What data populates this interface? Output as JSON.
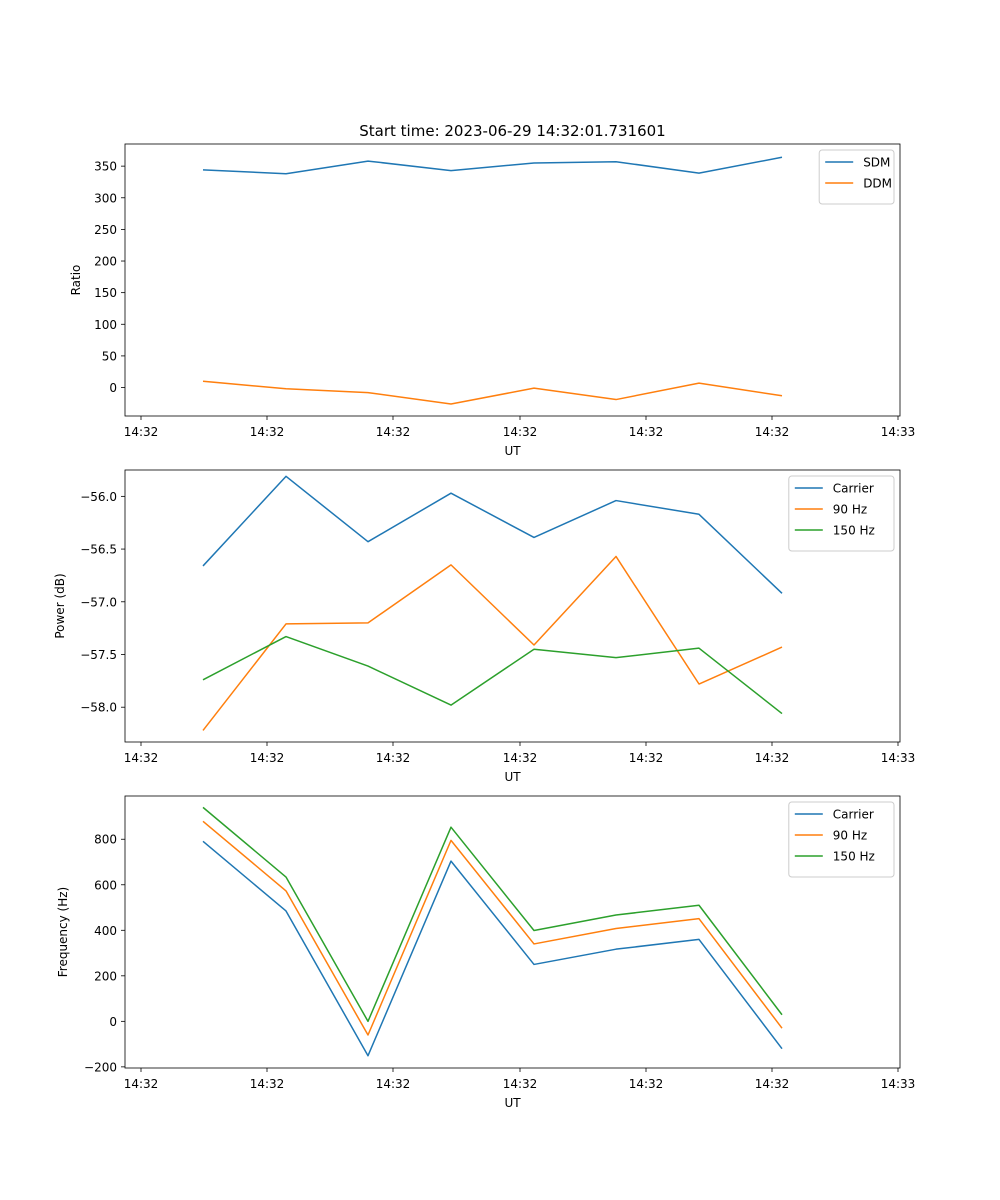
{
  "figure": {
    "title": "Start time: 2023-06-29 14:32:01.731601"
  },
  "chart_data": [
    {
      "type": "line",
      "title": "Start time: 2023-06-29 14:32:01.731601",
      "xlabel": "UT",
      "ylabel": "Ratio",
      "x_tick_labels": [
        "14:32",
        "14:32",
        "14:32",
        "14:32",
        "14:32",
        "14:32",
        "14:33"
      ],
      "y_ticks": [
        0,
        50,
        100,
        150,
        200,
        250,
        300,
        350
      ],
      "ylim": [
        -45,
        385
      ],
      "grid": false,
      "legend_position": "top-right",
      "series": [
        {
          "name": "SDM",
          "color": "#1f77b4",
          "values": [
            344,
            338,
            358,
            343,
            355,
            357,
            339,
            364
          ]
        },
        {
          "name": "DDM",
          "color": "#ff7f0e",
          "values": [
            10,
            -2,
            -8,
            -26,
            -1,
            -19,
            7,
            -13
          ]
        }
      ]
    },
    {
      "type": "line",
      "title": "",
      "xlabel": "UT",
      "ylabel": "Power (dB)",
      "x_tick_labels": [
        "14:32",
        "14:32",
        "14:32",
        "14:32",
        "14:32",
        "14:32",
        "14:33"
      ],
      "y_ticks": [
        -58.0,
        -57.5,
        -57.0,
        -56.5,
        -56.0
      ],
      "ylim": [
        -58.33,
        -55.75
      ],
      "grid": false,
      "legend_position": "top-right",
      "series": [
        {
          "name": "Carrier",
          "color": "#1f77b4",
          "values": [
            -56.66,
            -55.81,
            -56.43,
            -55.97,
            -56.39,
            -56.04,
            -56.17,
            -56.92
          ]
        },
        {
          "name": "90 Hz",
          "color": "#ff7f0e",
          "values": [
            -58.22,
            -57.21,
            -57.2,
            -56.65,
            -57.41,
            -56.57,
            -57.78,
            -57.43
          ]
        },
        {
          "name": "150 Hz",
          "color": "#2ca02c",
          "values": [
            -57.74,
            -57.33,
            -57.61,
            -57.98,
            -57.45,
            -57.53,
            -57.44,
            -58.06
          ]
        }
      ]
    },
    {
      "type": "line",
      "title": "",
      "xlabel": "UT",
      "ylabel": "Frequency (Hz)",
      "x_tick_labels": [
        "14:32",
        "14:32",
        "14:32",
        "14:32",
        "14:32",
        "14:32",
        "14:33"
      ],
      "y_ticks": [
        -200,
        0,
        200,
        400,
        600,
        800
      ],
      "ylim": [
        -205,
        990
      ],
      "grid": false,
      "legend_position": "top-right",
      "series": [
        {
          "name": "Carrier",
          "color": "#1f77b4",
          "values": [
            791,
            485,
            -151,
            704,
            250,
            317,
            360,
            -120
          ]
        },
        {
          "name": "90 Hz",
          "color": "#ff7f0e",
          "values": [
            879,
            573,
            -60,
            795,
            340,
            408,
            451,
            -30
          ]
        },
        {
          "name": "150 Hz",
          "color": "#2ca02c",
          "values": [
            940,
            634,
            0,
            853,
            399,
            467,
            510,
            29
          ]
        }
      ]
    }
  ]
}
